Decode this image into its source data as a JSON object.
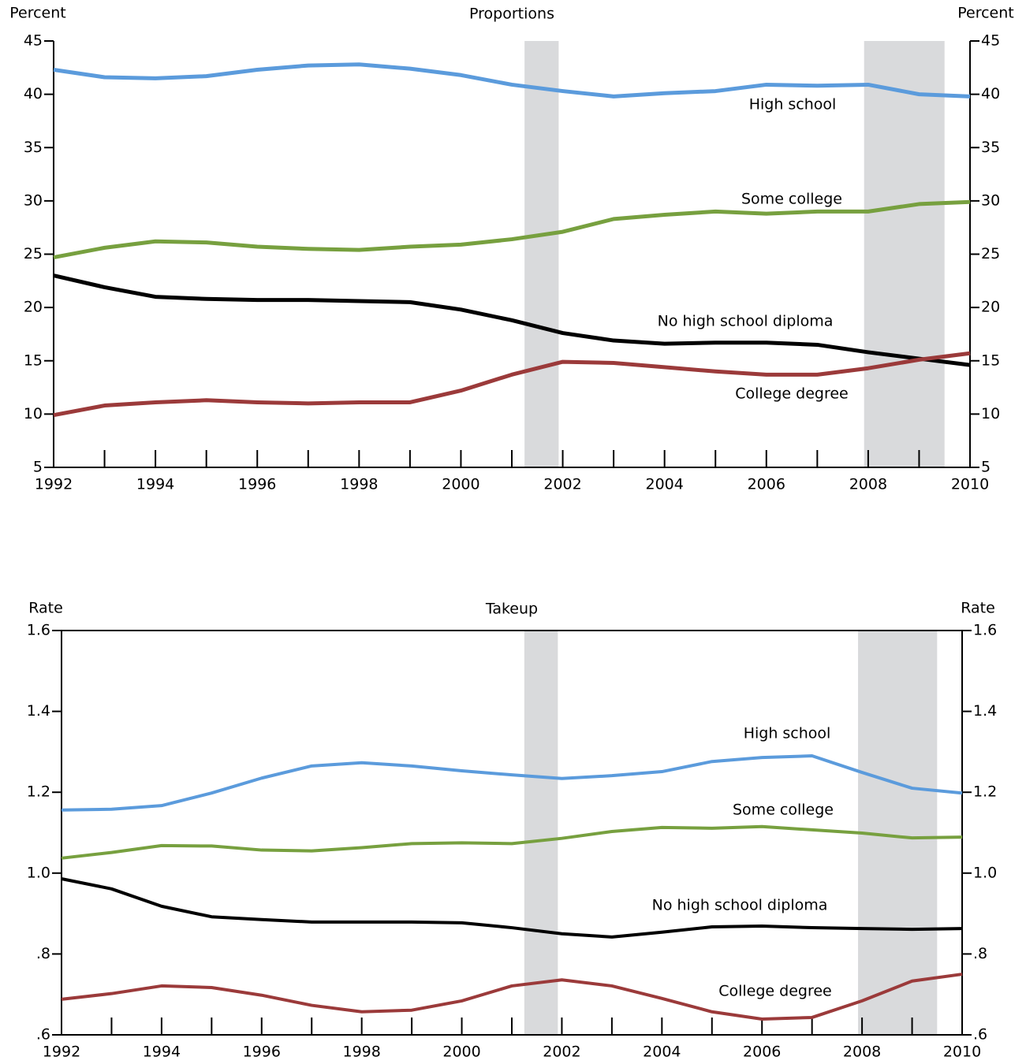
{
  "chart_data": [
    {
      "type": "line",
      "title": "Proportions",
      "ylabel": "Percent",
      "x": [
        1992,
        1993,
        1994,
        1995,
        1996,
        1997,
        1998,
        1999,
        2000,
        2001,
        2002,
        2003,
        2004,
        2005,
        2006,
        2007,
        2008,
        2009,
        2010
      ],
      "xlim": [
        1992,
        2010
      ],
      "xticks": [
        1992,
        1994,
        1996,
        1998,
        2000,
        2002,
        2004,
        2006,
        2008,
        2010
      ],
      "xminor_ticks": [
        1993,
        1995,
        1997,
        1999,
        2001,
        2003,
        2005,
        2007,
        2009
      ],
      "ylim": [
        5,
        45
      ],
      "yticks": [
        5,
        10,
        15,
        20,
        25,
        30,
        35,
        40,
        45
      ],
      "recessions": [
        [
          2001.25,
          2001.92
        ],
        [
          2007.92,
          2009.5
        ]
      ],
      "series": [
        {
          "name": "High school",
          "color": "#5b9bdc",
          "values": [
            42.3,
            41.6,
            41.5,
            41.7,
            42.3,
            42.7,
            42.8,
            42.4,
            41.8,
            40.9,
            40.3,
            39.8,
            40.1,
            40.3,
            40.9,
            40.8,
            40.9,
            40.0,
            39.8
          ]
        },
        {
          "name": "Some college",
          "color": "#77a03f",
          "values": [
            24.7,
            25.6,
            26.2,
            26.1,
            25.7,
            25.5,
            25.4,
            25.7,
            25.9,
            26.4,
            27.1,
            28.3,
            28.7,
            29.0,
            28.8,
            29.0,
            29.0,
            29.7,
            29.9
          ]
        },
        {
          "name": "No high school diploma",
          "color": "#000000",
          "values": [
            23.0,
            21.9,
            21.0,
            20.8,
            20.7,
            20.7,
            20.6,
            20.5,
            19.8,
            18.8,
            17.6,
            16.9,
            16.6,
            16.7,
            16.7,
            16.5,
            15.8,
            15.2,
            14.6
          ]
        },
        {
          "name": "College degree",
          "color": "#9b3a3a",
          "values": [
            9.9,
            10.8,
            11.1,
            11.3,
            11.1,
            11.0,
            11.1,
            11.1,
            12.2,
            13.7,
            14.9,
            14.8,
            14.4,
            14.0,
            13.7,
            13.7,
            14.3,
            15.1,
            15.7
          ]
        }
      ]
    },
    {
      "type": "line",
      "title": "Takeup",
      "ylabel": "Rate",
      "x": [
        1992,
        1993,
        1994,
        1995,
        1996,
        1997,
        1998,
        1999,
        2000,
        2001,
        2002,
        2003,
        2004,
        2005,
        2006,
        2007,
        2008,
        2009,
        2010
      ],
      "xlim": [
        1992,
        2010
      ],
      "xticks": [
        1992,
        1994,
        1996,
        1998,
        2000,
        2002,
        2004,
        2006,
        2008,
        2010
      ],
      "xminor_ticks": [
        1993,
        1995,
        1997,
        1999,
        2001,
        2003,
        2005,
        2007,
        2009
      ],
      "ylim": [
        0.6,
        1.6
      ],
      "yticks": [
        {
          "value": 0.6,
          "label": ".6"
        },
        {
          "value": 0.8,
          "label": ".8"
        },
        {
          "value": 1.0,
          "label": "1.0"
        },
        {
          "value": 1.2,
          "label": "1.2"
        },
        1.4,
        1.6
      ],
      "recessions": [
        [
          2001.25,
          2001.92
        ],
        [
          2007.92,
          2009.5
        ]
      ],
      "series": [
        {
          "name": "High school",
          "color": "#5b9bdc",
          "values": [
            1.156,
            1.158,
            1.167,
            1.198,
            1.235,
            1.265,
            1.273,
            1.265,
            1.253,
            1.243,
            1.234,
            1.241,
            1.251,
            1.276,
            1.286,
            1.29,
            1.249,
            1.21,
            1.198
          ]
        },
        {
          "name": "Some college",
          "color": "#77a03f",
          "values": [
            1.037,
            1.051,
            1.068,
            1.067,
            1.057,
            1.055,
            1.063,
            1.073,
            1.075,
            1.073,
            1.086,
            1.103,
            1.113,
            1.111,
            1.115,
            1.107,
            1.099,
            1.087,
            1.089
          ]
        },
        {
          "name": "No high school diploma",
          "color": "#000000",
          "values": [
            0.986,
            0.961,
            0.918,
            0.892,
            0.885,
            0.879,
            0.879,
            0.879,
            0.877,
            0.865,
            0.85,
            0.842,
            0.854,
            0.867,
            0.869,
            0.865,
            0.863,
            0.861,
            0.863
          ]
        },
        {
          "name": "College degree",
          "color": "#9b3a3a",
          "values": [
            0.688,
            0.702,
            0.721,
            0.717,
            0.698,
            0.673,
            0.657,
            0.661,
            0.684,
            0.721,
            0.736,
            0.721,
            0.69,
            0.657,
            0.639,
            0.643,
            0.684,
            0.733,
            0.75
          ]
        }
      ]
    }
  ]
}
